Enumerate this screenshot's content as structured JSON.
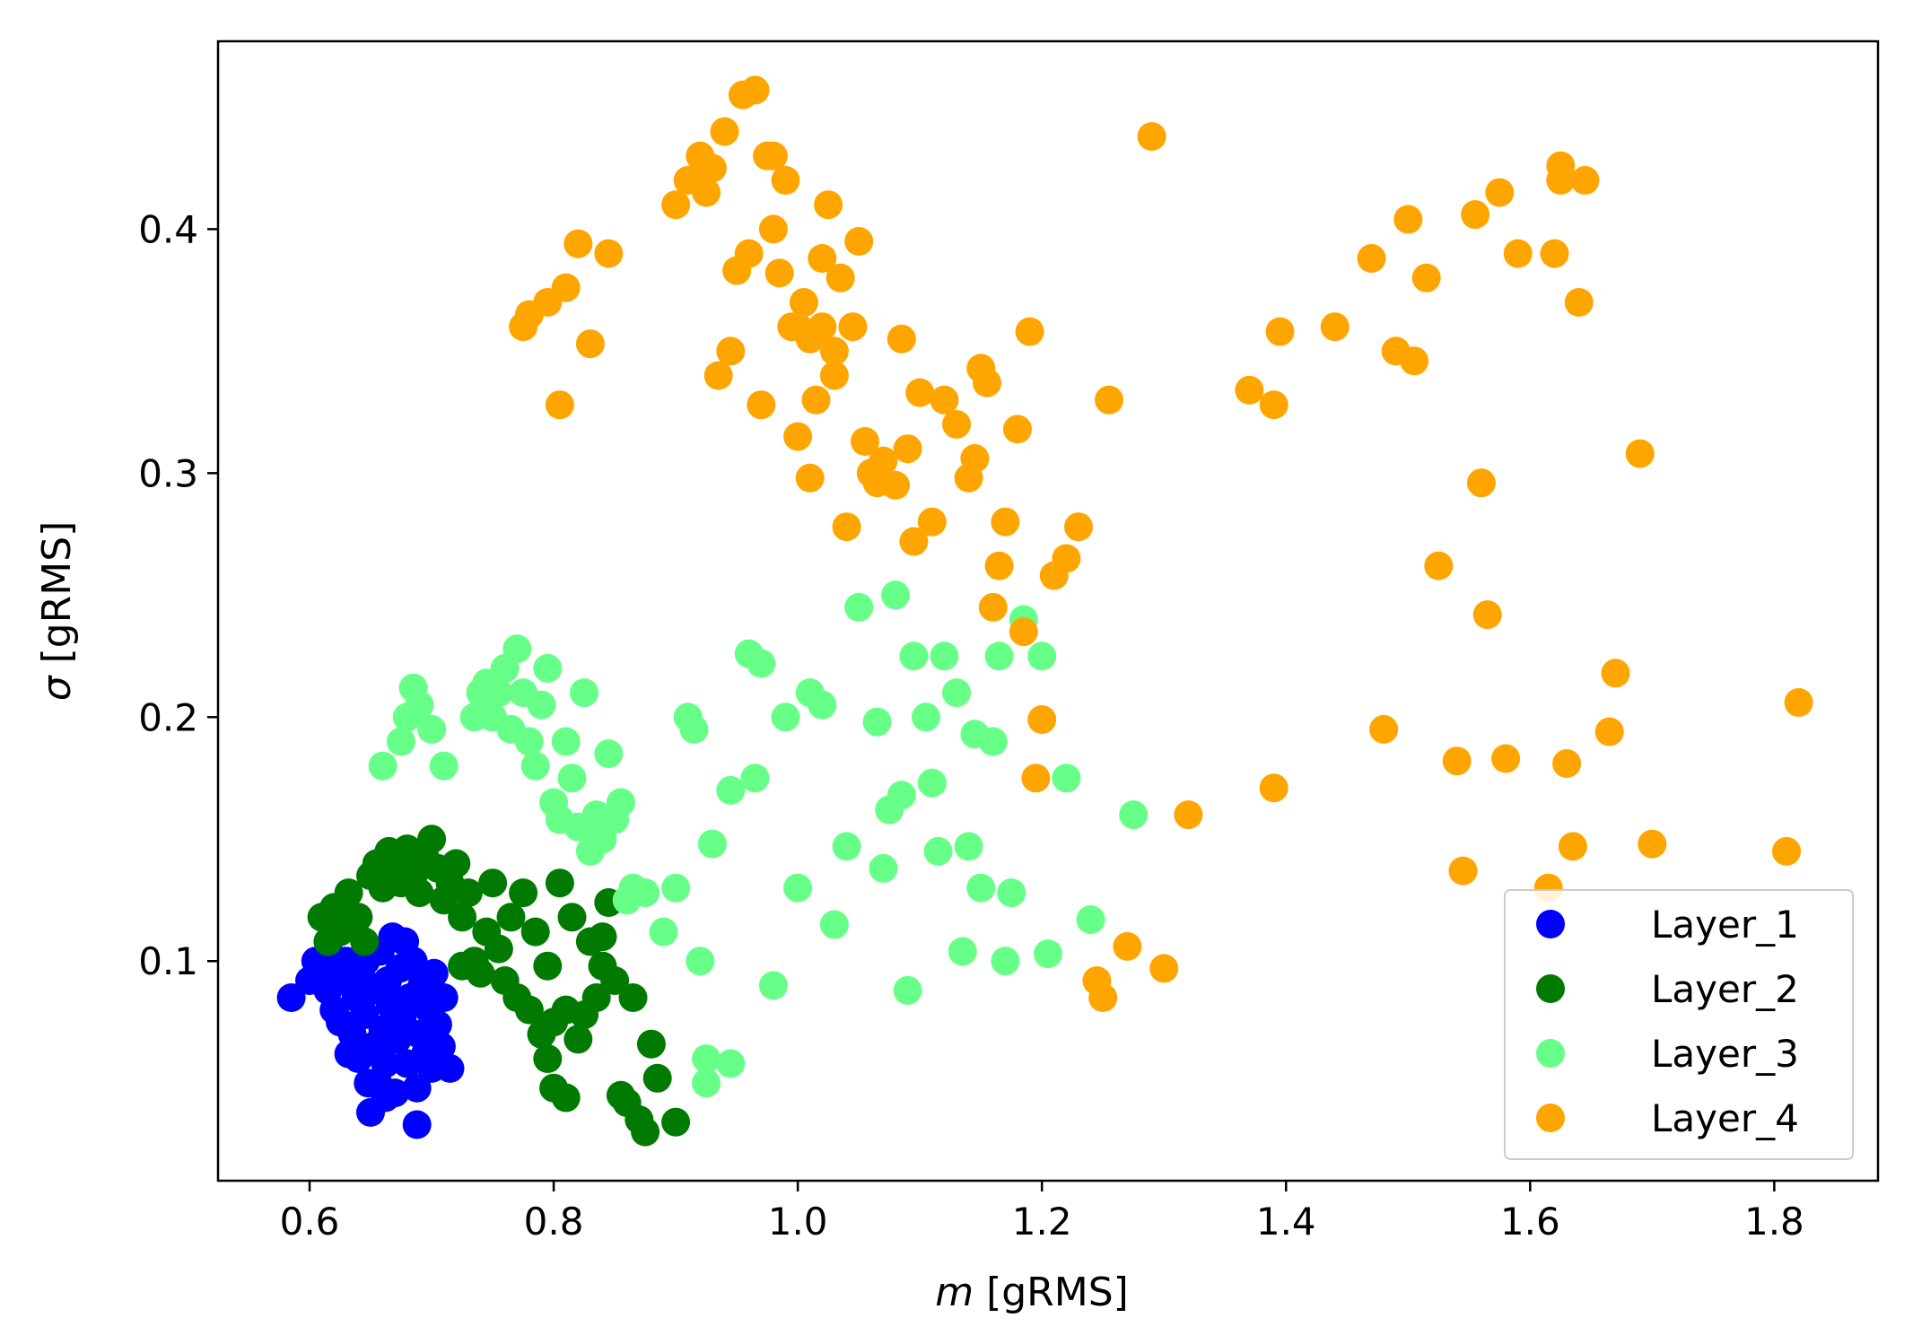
{
  "chart_data": {
    "type": "scatter",
    "xlabel": "m [gRMS]",
    "xlabel_var": "m",
    "xlabel_unit": " [gRMS]",
    "ylabel": "σ [gRMS]",
    "ylabel_var": "σ",
    "ylabel_unit": " [gRMS]",
    "xlim": [
      0.525,
      1.885
    ],
    "ylim": [
      0.01,
      0.477
    ],
    "xticks": [
      0.6,
      0.8,
      1.0,
      1.2,
      1.4,
      1.6,
      1.8
    ],
    "xtick_labels": [
      "0.6",
      "0.8",
      "1.0",
      "1.2",
      "1.4",
      "1.6",
      "1.8"
    ],
    "yticks": [
      0.1,
      0.2,
      0.3,
      0.4
    ],
    "ytick_labels": [
      "0.1",
      "0.2",
      "0.3",
      "0.4"
    ],
    "grid": false,
    "legend_position": "lower-right",
    "series": [
      {
        "name": "Layer_1",
        "color": "#0000ff",
        "points": [
          [
            0.585,
            0.085
          ],
          [
            0.6,
            0.092
          ],
          [
            0.605,
            0.1
          ],
          [
            0.61,
            0.096
          ],
          [
            0.615,
            0.088
          ],
          [
            0.62,
            0.08
          ],
          [
            0.625,
            0.075
          ],
          [
            0.628,
            0.092
          ],
          [
            0.63,
            0.1
          ],
          [
            0.635,
            0.07
          ],
          [
            0.638,
            0.085
          ],
          [
            0.64,
            0.06
          ],
          [
            0.642,
            0.095
          ],
          [
            0.645,
            0.078
          ],
          [
            0.648,
            0.05
          ],
          [
            0.65,
            0.038
          ],
          [
            0.652,
            0.088
          ],
          [
            0.655,
            0.066
          ],
          [
            0.658,
            0.104
          ],
          [
            0.66,
            0.072
          ],
          [
            0.662,
            0.058
          ],
          [
            0.664,
            0.092
          ],
          [
            0.666,
            0.082
          ],
          [
            0.668,
            0.11
          ],
          [
            0.67,
            0.046
          ],
          [
            0.672,
            0.068
          ],
          [
            0.674,
            0.097
          ],
          [
            0.676,
            0.077
          ],
          [
            0.678,
            0.108
          ],
          [
            0.68,
            0.058
          ],
          [
            0.682,
            0.085
          ],
          [
            0.685,
            0.1
          ],
          [
            0.688,
            0.033
          ],
          [
            0.69,
            0.07
          ],
          [
            0.692,
            0.09
          ],
          [
            0.695,
            0.062
          ],
          [
            0.698,
            0.08
          ],
          [
            0.7,
            0.056
          ],
          [
            0.702,
            0.095
          ],
          [
            0.705,
            0.074
          ],
          [
            0.708,
            0.065
          ],
          [
            0.71,
            0.085
          ],
          [
            0.715,
            0.056
          ],
          [
            0.656,
            0.05
          ],
          [
            0.662,
            0.044
          ],
          [
            0.618,
            0.102
          ],
          [
            0.632,
            0.062
          ],
          [
            0.646,
            0.1
          ],
          [
            0.688,
            0.048
          ],
          [
            0.704,
            0.064
          ]
        ]
      },
      {
        "name": "Layer_2",
        "color": "#007a00",
        "points": [
          [
            0.61,
            0.118
          ],
          [
            0.615,
            0.108
          ],
          [
            0.62,
            0.122
          ],
          [
            0.625,
            0.112
          ],
          [
            0.628,
            0.118
          ],
          [
            0.632,
            0.128
          ],
          [
            0.64,
            0.118
          ],
          [
            0.645,
            0.108
          ],
          [
            0.65,
            0.135
          ],
          [
            0.655,
            0.14
          ],
          [
            0.66,
            0.13
          ],
          [
            0.665,
            0.145
          ],
          [
            0.67,
            0.138
          ],
          [
            0.675,
            0.132
          ],
          [
            0.68,
            0.146
          ],
          [
            0.685,
            0.135
          ],
          [
            0.69,
            0.128
          ],
          [
            0.695,
            0.142
          ],
          [
            0.7,
            0.15
          ],
          [
            0.705,
            0.138
          ],
          [
            0.71,
            0.125
          ],
          [
            0.715,
            0.132
          ],
          [
            0.72,
            0.14
          ],
          [
            0.725,
            0.118
          ],
          [
            0.73,
            0.128
          ],
          [
            0.735,
            0.1
          ],
          [
            0.74,
            0.095
          ],
          [
            0.745,
            0.112
          ],
          [
            0.75,
            0.132
          ],
          [
            0.755,
            0.105
          ],
          [
            0.76,
            0.092
          ],
          [
            0.765,
            0.118
          ],
          [
            0.77,
            0.085
          ],
          [
            0.775,
            0.128
          ],
          [
            0.78,
            0.08
          ],
          [
            0.785,
            0.112
          ],
          [
            0.79,
            0.07
          ],
          [
            0.795,
            0.098
          ],
          [
            0.8,
            0.048
          ],
          [
            0.805,
            0.132
          ],
          [
            0.81,
            0.044
          ],
          [
            0.815,
            0.118
          ],
          [
            0.82,
            0.068
          ],
          [
            0.825,
            0.078
          ],
          [
            0.83,
            0.108
          ],
          [
            0.835,
            0.085
          ],
          [
            0.84,
            0.098
          ],
          [
            0.845,
            0.124
          ],
          [
            0.85,
            0.092
          ],
          [
            0.855,
            0.045
          ],
          [
            0.86,
            0.042
          ],
          [
            0.865,
            0.085
          ],
          [
            0.87,
            0.035
          ],
          [
            0.875,
            0.03
          ],
          [
            0.88,
            0.066
          ],
          [
            0.885,
            0.052
          ],
          [
            0.9,
            0.034
          ],
          [
            0.725,
            0.098
          ],
          [
            0.81,
            0.08
          ],
          [
            0.8,
            0.075
          ],
          [
            0.84,
            0.11
          ],
          [
            0.795,
            0.06
          ]
        ]
      },
      {
        "name": "Layer_3",
        "color": "#66ff88",
        "points": [
          [
            0.66,
            0.18
          ],
          [
            0.675,
            0.19
          ],
          [
            0.68,
            0.2
          ],
          [
            0.685,
            0.212
          ],
          [
            0.69,
            0.205
          ],
          [
            0.7,
            0.195
          ],
          [
            0.71,
            0.18
          ],
          [
            0.735,
            0.2
          ],
          [
            0.74,
            0.21
          ],
          [
            0.745,
            0.214
          ],
          [
            0.75,
            0.2
          ],
          [
            0.755,
            0.21
          ],
          [
            0.76,
            0.22
          ],
          [
            0.765,
            0.195
          ],
          [
            0.77,
            0.228
          ],
          [
            0.775,
            0.21
          ],
          [
            0.78,
            0.19
          ],
          [
            0.785,
            0.18
          ],
          [
            0.79,
            0.205
          ],
          [
            0.795,
            0.22
          ],
          [
            0.8,
            0.165
          ],
          [
            0.805,
            0.158
          ],
          [
            0.81,
            0.19
          ],
          [
            0.815,
            0.175
          ],
          [
            0.82,
            0.155
          ],
          [
            0.825,
            0.21
          ],
          [
            0.83,
            0.145
          ],
          [
            0.835,
            0.16
          ],
          [
            0.84,
            0.15
          ],
          [
            0.845,
            0.185
          ],
          [
            0.85,
            0.158
          ],
          [
            0.855,
            0.165
          ],
          [
            0.86,
            0.125
          ],
          [
            0.865,
            0.13
          ],
          [
            0.875,
            0.128
          ],
          [
            0.89,
            0.112
          ],
          [
            0.9,
            0.13
          ],
          [
            0.91,
            0.2
          ],
          [
            0.915,
            0.195
          ],
          [
            0.92,
            0.1
          ],
          [
            0.925,
            0.06
          ],
          [
            0.93,
            0.148
          ],
          [
            0.945,
            0.17
          ],
          [
            0.96,
            0.226
          ],
          [
            0.965,
            0.175
          ],
          [
            0.97,
            0.222
          ],
          [
            0.98,
            0.09
          ],
          [
            0.99,
            0.2
          ],
          [
            1.0,
            0.13
          ],
          [
            1.01,
            0.21
          ],
          [
            1.02,
            0.205
          ],
          [
            1.03,
            0.115
          ],
          [
            1.04,
            0.147
          ],
          [
            1.05,
            0.245
          ],
          [
            1.065,
            0.198
          ],
          [
            1.07,
            0.138
          ],
          [
            1.075,
            0.162
          ],
          [
            1.08,
            0.25
          ],
          [
            1.085,
            0.168
          ],
          [
            1.09,
            0.088
          ],
          [
            1.095,
            0.225
          ],
          [
            1.105,
            0.2
          ],
          [
            1.11,
            0.173
          ],
          [
            1.115,
            0.145
          ],
          [
            1.12,
            0.225
          ],
          [
            1.13,
            0.21
          ],
          [
            1.135,
            0.104
          ],
          [
            1.14,
            0.147
          ],
          [
            1.145,
            0.193
          ],
          [
            1.15,
            0.13
          ],
          [
            1.16,
            0.19
          ],
          [
            1.165,
            0.225
          ],
          [
            1.17,
            0.1
          ],
          [
            1.175,
            0.128
          ],
          [
            1.185,
            0.24
          ],
          [
            1.2,
            0.225
          ],
          [
            1.205,
            0.103
          ],
          [
            1.22,
            0.175
          ],
          [
            1.24,
            0.117
          ],
          [
            1.275,
            0.16
          ],
          [
            0.925,
            0.05
          ],
          [
            0.945,
            0.058
          ]
        ]
      },
      {
        "name": "Layer_4",
        "color": "#ffa500",
        "points": [
          [
            0.775,
            0.36
          ],
          [
            0.78,
            0.365
          ],
          [
            0.795,
            0.37
          ],
          [
            0.805,
            0.328
          ],
          [
            0.81,
            0.376
          ],
          [
            0.82,
            0.394
          ],
          [
            0.83,
            0.353
          ],
          [
            0.845,
            0.39
          ],
          [
            0.9,
            0.41
          ],
          [
            0.91,
            0.42
          ],
          [
            0.92,
            0.43
          ],
          [
            0.925,
            0.415
          ],
          [
            0.93,
            0.425
          ],
          [
            0.935,
            0.34
          ],
          [
            0.94,
            0.44
          ],
          [
            0.945,
            0.35
          ],
          [
            0.95,
            0.383
          ],
          [
            0.955,
            0.455
          ],
          [
            0.96,
            0.39
          ],
          [
            0.965,
            0.457
          ],
          [
            0.97,
            0.328
          ],
          [
            0.975,
            0.43
          ],
          [
            0.98,
            0.4
          ],
          [
            0.985,
            0.382
          ],
          [
            0.99,
            0.42
          ],
          [
            0.995,
            0.36
          ],
          [
            1.0,
            0.315
          ],
          [
            1.005,
            0.37
          ],
          [
            1.01,
            0.298
          ],
          [
            1.015,
            0.33
          ],
          [
            1.02,
            0.388
          ],
          [
            1.025,
            0.41
          ],
          [
            1.03,
            0.35
          ],
          [
            1.035,
            0.38
          ],
          [
            1.04,
            0.278
          ],
          [
            1.045,
            0.36
          ],
          [
            1.05,
            0.395
          ],
          [
            1.055,
            0.313
          ],
          [
            1.06,
            0.3
          ],
          [
            1.065,
            0.296
          ],
          [
            1.07,
            0.305
          ],
          [
            1.08,
            0.295
          ],
          [
            1.085,
            0.355
          ],
          [
            1.09,
            0.31
          ],
          [
            1.095,
            0.272
          ],
          [
            1.1,
            0.333
          ],
          [
            1.11,
            0.28
          ],
          [
            1.12,
            0.33
          ],
          [
            1.13,
            0.32
          ],
          [
            1.14,
            0.298
          ],
          [
            1.145,
            0.306
          ],
          [
            1.15,
            0.343
          ],
          [
            1.155,
            0.337
          ],
          [
            1.16,
            0.245
          ],
          [
            1.165,
            0.262
          ],
          [
            1.17,
            0.28
          ],
          [
            1.18,
            0.318
          ],
          [
            1.185,
            0.235
          ],
          [
            1.19,
            0.358
          ],
          [
            1.195,
            0.175
          ],
          [
            1.2,
            0.199
          ],
          [
            1.21,
            0.258
          ],
          [
            1.22,
            0.265
          ],
          [
            1.23,
            0.278
          ],
          [
            1.245,
            0.092
          ],
          [
            1.25,
            0.085
          ],
          [
            1.255,
            0.33
          ],
          [
            1.27,
            0.106
          ],
          [
            1.29,
            0.438
          ],
          [
            1.3,
            0.097
          ],
          [
            1.32,
            0.16
          ],
          [
            1.37,
            0.334
          ],
          [
            1.39,
            0.328
          ],
          [
            1.395,
            0.358
          ],
          [
            1.39,
            0.171
          ],
          [
            1.44,
            0.36
          ],
          [
            1.47,
            0.388
          ],
          [
            1.48,
            0.195
          ],
          [
            1.49,
            0.35
          ],
          [
            1.5,
            0.404
          ],
          [
            1.505,
            0.346
          ],
          [
            1.515,
            0.38
          ],
          [
            1.525,
            0.262
          ],
          [
            1.54,
            0.182
          ],
          [
            1.545,
            0.137
          ],
          [
            1.555,
            0.406
          ],
          [
            1.56,
            0.296
          ],
          [
            1.565,
            0.242
          ],
          [
            1.575,
            0.415
          ],
          [
            1.58,
            0.183
          ],
          [
            1.59,
            0.39
          ],
          [
            1.62,
            0.39
          ],
          [
            1.625,
            0.42
          ],
          [
            1.63,
            0.181
          ],
          [
            1.635,
            0.147
          ],
          [
            1.64,
            0.37
          ],
          [
            1.645,
            0.42
          ],
          [
            1.665,
            0.194
          ],
          [
            1.67,
            0.218
          ],
          [
            1.69,
            0.308
          ],
          [
            1.7,
            0.148
          ],
          [
            1.81,
            0.145
          ],
          [
            1.82,
            0.206
          ],
          [
            1.615,
            0.13
          ],
          [
            1.625,
            0.426
          ],
          [
            0.98,
            0.43
          ],
          [
            1.0,
            0.36
          ],
          [
            1.01,
            0.355
          ],
          [
            1.02,
            0.36
          ],
          [
            1.03,
            0.34
          ]
        ]
      }
    ]
  }
}
